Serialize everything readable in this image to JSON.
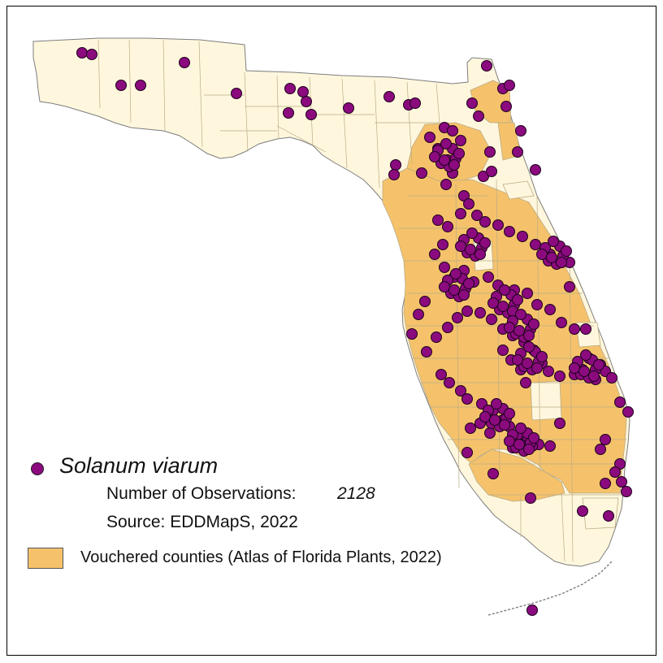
{
  "colors": {
    "state_fill": "#fff7dd",
    "vouchered_fill": "#f5c26b",
    "county_line": "#b9ab86",
    "outline": "#7d7d7d",
    "observation_fill": "#8b0a7e",
    "observation_stroke": "#1a001a"
  },
  "legend": {
    "species": "Solanum viarum",
    "observations_label": "Number of Observations:",
    "observations_value": "2128",
    "source": "Source: EDDMapS, 2022",
    "vouchered_label": "Vouchered counties (Atlas of Florida Plants, 2022)"
  },
  "map": {
    "observation_marker_icon": "purple-circle-marker",
    "vouchered_marker_icon": "orange-swatch"
  }
}
